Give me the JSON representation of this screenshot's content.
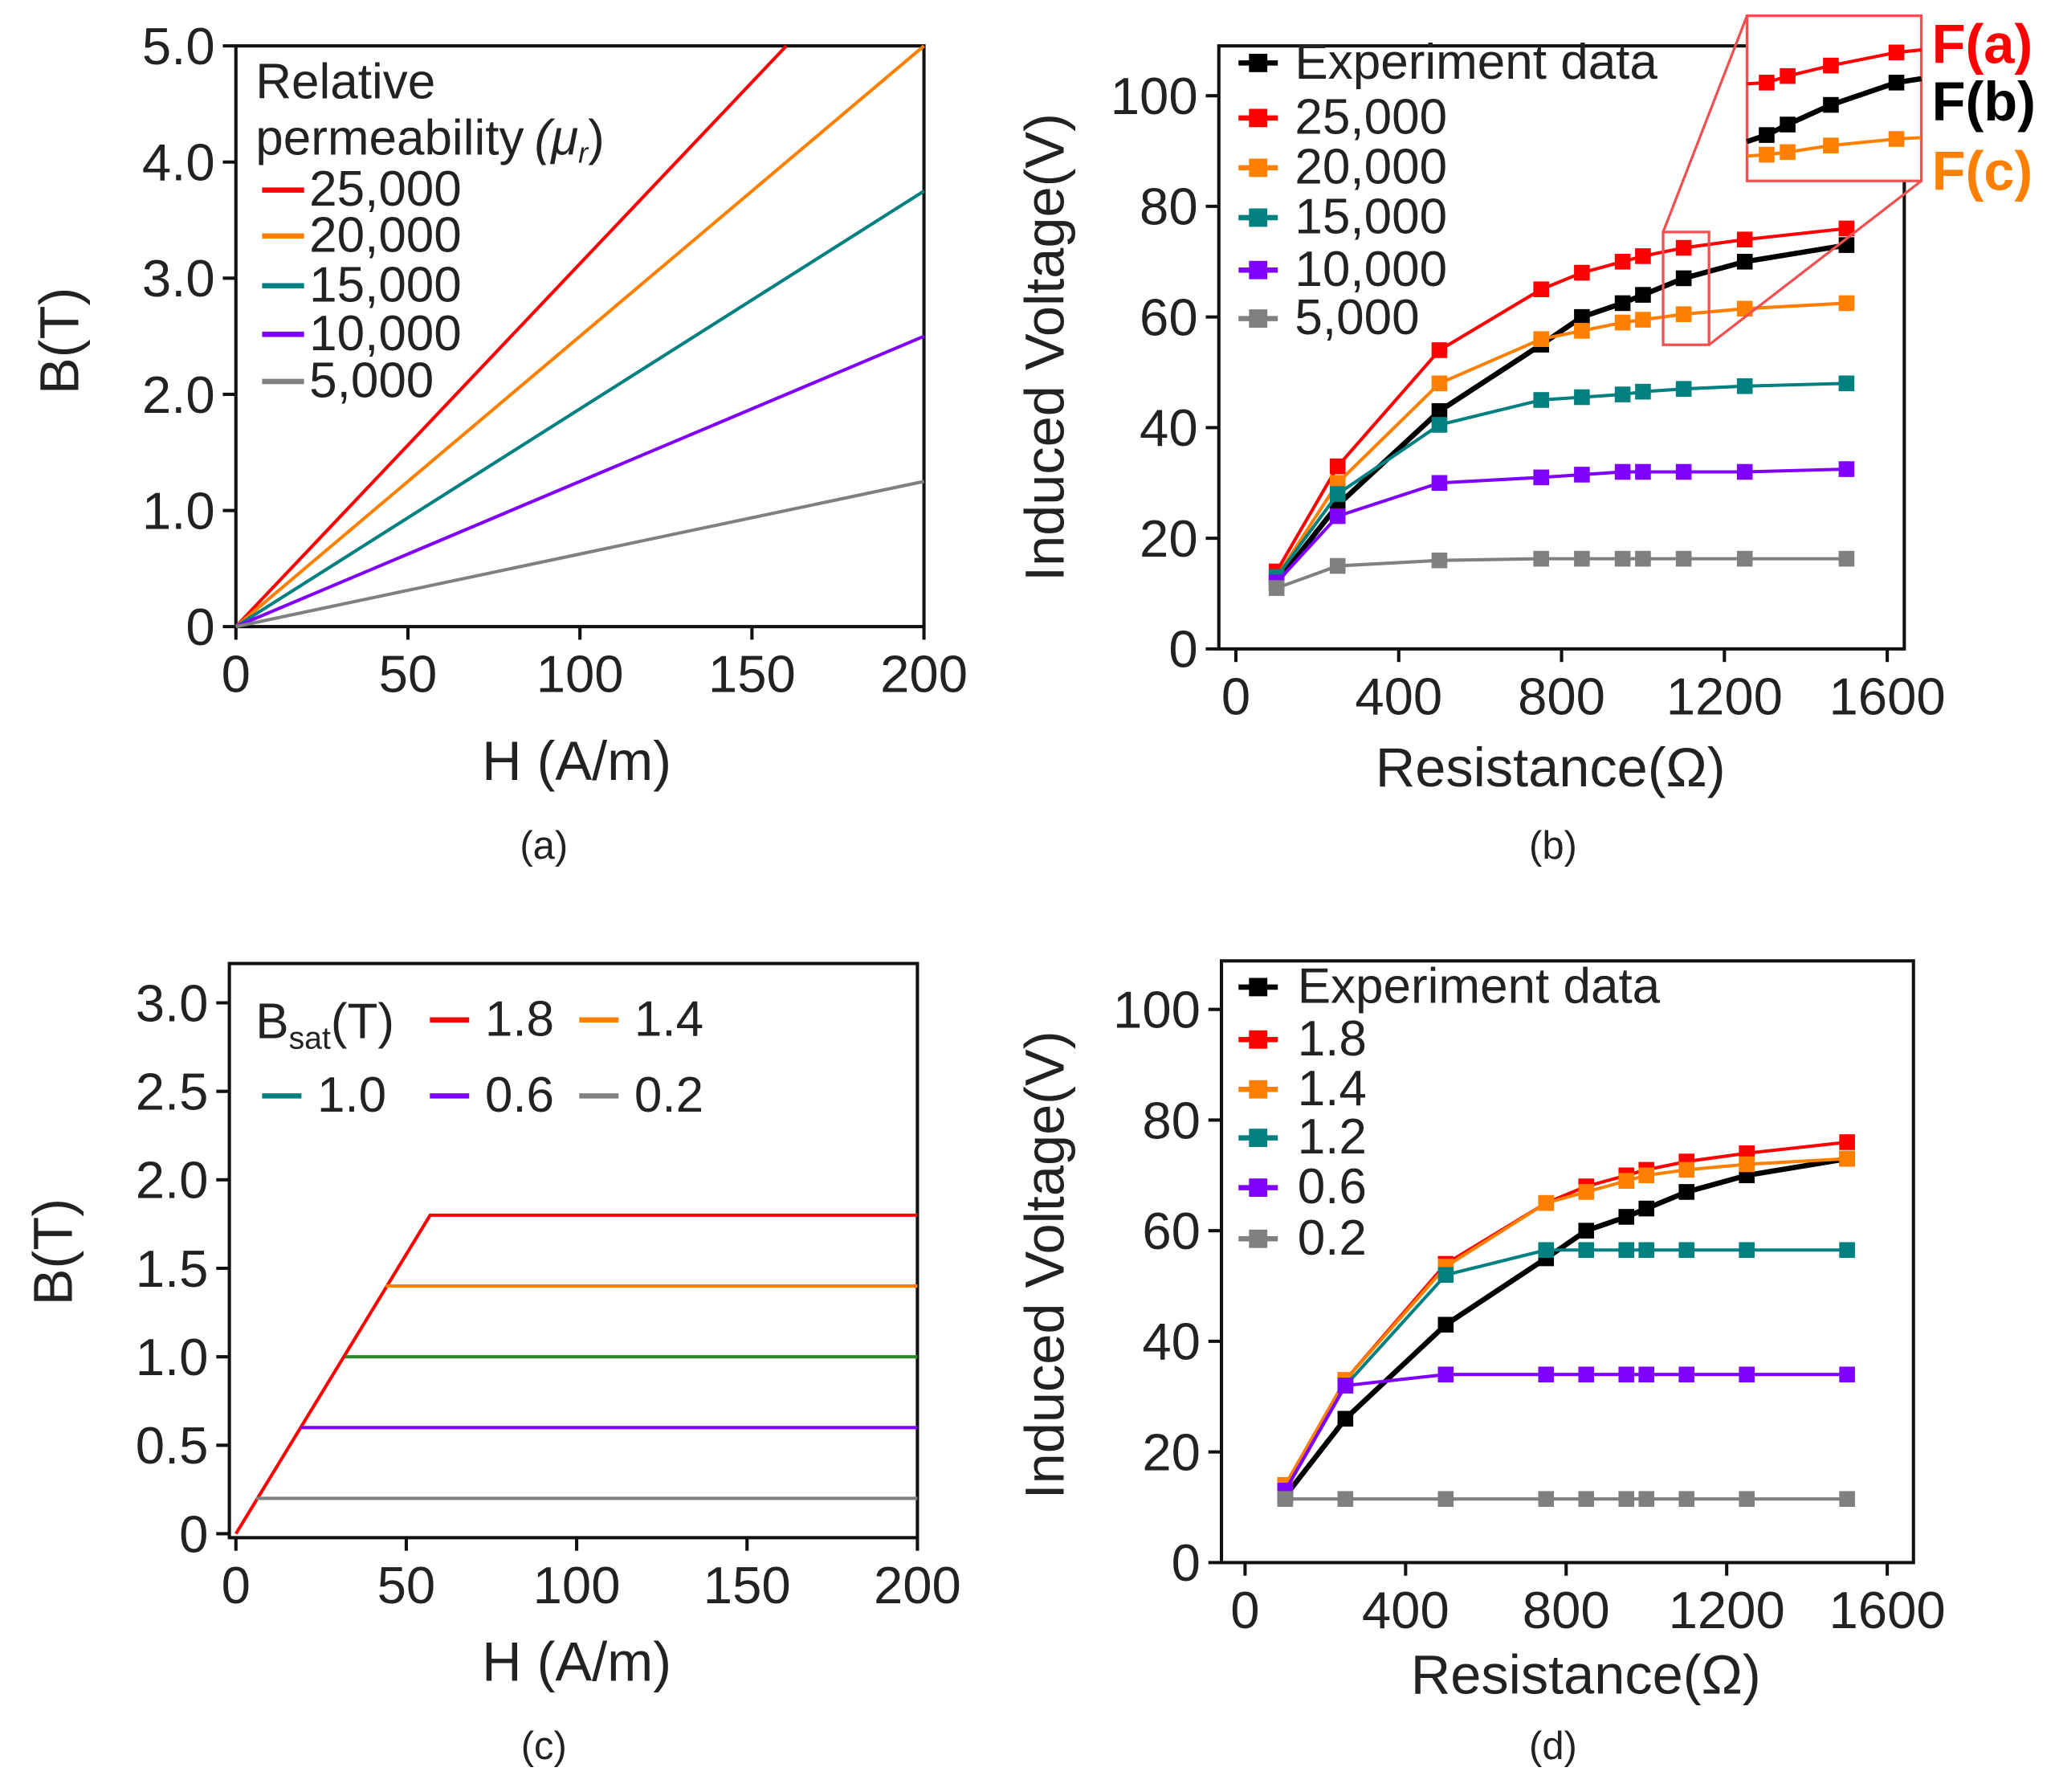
{
  "chart_data": [
    {
      "panel": "a",
      "type": "line",
      "caption": "(a)",
      "xlabel": "H (A/m)",
      "ylabel": "B(T)",
      "xlim": [
        0,
        200
      ],
      "ylim": [
        0,
        5
      ],
      "xticks": [
        0,
        50,
        100,
        150,
        200
      ],
      "xtick_labels": [
        "0",
        "50",
        "100",
        "150",
        "200"
      ],
      "yticks": [
        0,
        1,
        2,
        3,
        4,
        5
      ],
      "ytick_labels": [
        "0",
        "1.0",
        "2.0",
        "3.0",
        "4.0",
        "5.0"
      ],
      "legend_title": [
        "Relative",
        "permeability",
        "(μ",
        "r",
        ")"
      ],
      "legend_placement": "top-left",
      "series": [
        {
          "name": "25,000",
          "color": "#ff0000",
          "x": [
            0,
            160
          ],
          "y": [
            0,
            5
          ]
        },
        {
          "name": "20,000",
          "color": "#ff8000",
          "x": [
            0,
            200
          ],
          "y": [
            0,
            5
          ]
        },
        {
          "name": "15,000",
          "color": "#008080",
          "x": [
            0,
            200
          ],
          "y": [
            0,
            3.75
          ]
        },
        {
          "name": "10,000",
          "color": "#8000ff",
          "x": [
            0,
            200
          ],
          "y": [
            0,
            2.5
          ]
        },
        {
          "name": "5,000",
          "color": "#808080",
          "x": [
            0,
            200
          ],
          "y": [
            0,
            1.25
          ]
        }
      ]
    },
    {
      "panel": "b",
      "type": "line",
      "caption": "(b)",
      "xlabel": "Resistance(Ω)",
      "ylabel": "Induced Voltage(V)",
      "xlim": [
        0,
        1600
      ],
      "ylim": [
        0,
        100
      ],
      "xticks": [
        0,
        400,
        800,
        1200,
        1600
      ],
      "xtick_labels": [
        "0",
        "400",
        "800",
        "1200",
        "1600"
      ],
      "yticks": [
        0,
        20,
        40,
        60,
        80,
        100
      ],
      "ytick_labels": [
        "0",
        "20",
        "40",
        "60",
        "80",
        "100"
      ],
      "legend_placement": "top-left",
      "markers": true,
      "series": [
        {
          "name": "Experiment data",
          "color": "#000000",
          "x": [
            100,
            250,
            500,
            750,
            850,
            950,
            1000,
            1100,
            1250,
            1500
          ],
          "y": [
            12,
            26,
            43,
            55,
            60,
            62.5,
            64,
            67,
            70,
            73
          ]
        },
        {
          "name": "25,000",
          "color": "#ff0000",
          "x": [
            100,
            250,
            500,
            750,
            850,
            950,
            1000,
            1100,
            1250,
            1500
          ],
          "y": [
            14,
            33,
            54,
            65,
            68,
            70,
            71,
            72.5,
            74,
            76
          ]
        },
        {
          "name": "20,000",
          "color": "#ff8000",
          "x": [
            100,
            250,
            500,
            750,
            850,
            950,
            1000,
            1100,
            1250,
            1500
          ],
          "y": [
            13,
            30,
            48,
            56,
            57.5,
            59,
            59.5,
            60.5,
            61.5,
            62.5
          ]
        },
        {
          "name": "15,000",
          "color": "#008080",
          "x": [
            100,
            250,
            500,
            750,
            850,
            950,
            1000,
            1100,
            1250,
            1500
          ],
          "y": [
            13,
            28,
            40.5,
            45,
            45.5,
            46,
            46.5,
            47,
            47.5,
            48
          ]
        },
        {
          "name": "10,000",
          "color": "#8000ff",
          "x": [
            100,
            250,
            500,
            750,
            850,
            950,
            1000,
            1100,
            1250,
            1500
          ],
          "y": [
            12,
            24,
            30,
            31,
            31.5,
            32,
            32,
            32,
            32,
            32.5
          ]
        },
        {
          "name": "5,000",
          "color": "#808080",
          "x": [
            100,
            250,
            500,
            750,
            850,
            950,
            1000,
            1100,
            1250,
            1500
          ],
          "y": [
            11,
            15,
            16,
            16.3,
            16.3,
            16.3,
            16.3,
            16.3,
            16.3,
            16.3
          ]
        }
      ],
      "inset_labels": [
        {
          "text": "F(a)",
          "color": "#ff0000"
        },
        {
          "text": "F(b)",
          "color": "#000000"
        },
        {
          "text": "F(c)",
          "color": "#ff8000"
        }
      ]
    },
    {
      "panel": "c",
      "type": "line",
      "caption": "(c)",
      "xlabel": "H (A/m)",
      "ylabel": "B(T)",
      "xlim": [
        0,
        200
      ],
      "ylim": [
        0,
        3
      ],
      "xticks": [
        0,
        50,
        100,
        150,
        200
      ],
      "xtick_labels": [
        "0",
        "50",
        "100",
        "150",
        "200"
      ],
      "yticks": [
        0,
        0.5,
        1,
        1.5,
        2,
        2.5,
        3
      ],
      "ytick_labels": [
        "0",
        "0.5",
        "1.0",
        "1.5",
        "2.0",
        "2.5",
        "3.0"
      ],
      "legend_title": [
        "B",
        "sat",
        "(T)"
      ],
      "legend_placement": "top",
      "series": [
        {
          "name": "1.8",
          "color": "#ff0000",
          "x": [
            0,
            57,
            200
          ],
          "y": [
            0,
            1.8,
            1.8
          ]
        },
        {
          "name": "1.4",
          "color": "#ff8000",
          "x": [
            44,
            200
          ],
          "y": [
            1.4,
            1.4
          ]
        },
        {
          "name": "1.0",
          "color": "#008080",
          "line_color": "#2a8a2a",
          "x": [
            32,
            200
          ],
          "y": [
            1.0,
            1.0
          ]
        },
        {
          "name": "0.6",
          "color": "#8000ff",
          "x": [
            19,
            200
          ],
          "y": [
            0.6,
            0.6
          ]
        },
        {
          "name": "0.2",
          "color": "#808080",
          "x": [
            6,
            200
          ],
          "y": [
            0.2,
            0.2
          ]
        }
      ]
    },
    {
      "panel": "d",
      "type": "line",
      "caption": "(d)",
      "xlabel": "Resistance(Ω)",
      "ylabel": "Induced Voltage(V)",
      "xlim": [
        0,
        1600
      ],
      "ylim": [
        0,
        100
      ],
      "xticks": [
        0,
        400,
        800,
        1200,
        1600
      ],
      "xtick_labels": [
        "0",
        "400",
        "800",
        "1200",
        "1600"
      ],
      "yticks": [
        0,
        20,
        40,
        60,
        80,
        100
      ],
      "ytick_labels": [
        "0",
        "20",
        "40",
        "60",
        "80",
        "100"
      ],
      "legend_placement": "top-left",
      "markers": true,
      "series": [
        {
          "name": "Experiment data",
          "color": "#000000",
          "x": [
            100,
            250,
            500,
            750,
            850,
            950,
            1000,
            1100,
            1250,
            1500
          ],
          "y": [
            12,
            26,
            43,
            55,
            60,
            62.5,
            64,
            67,
            70,
            73
          ]
        },
        {
          "name": "1.8",
          "color": "#ff0000",
          "x": [
            100,
            250,
            500,
            750,
            850,
            950,
            1000,
            1100,
            1250,
            1500
          ],
          "y": [
            14,
            33,
            54,
            65,
            68,
            70,
            71,
            72.5,
            74,
            76
          ]
        },
        {
          "name": "1.4",
          "color": "#ff8000",
          "x": [
            100,
            250,
            500,
            750,
            850,
            950,
            1000,
            1100,
            1250,
            1500
          ],
          "y": [
            14,
            33,
            53.5,
            65,
            67,
            69,
            70,
            71,
            72,
            73
          ]
        },
        {
          "name": "1.2",
          "color": "#008080",
          "x": [
            100,
            250,
            500,
            750,
            850,
            950,
            1000,
            1100,
            1250,
            1500
          ],
          "y": [
            13,
            32,
            52,
            56.5,
            56.5,
            56.5,
            56.5,
            56.5,
            56.5,
            56.5
          ]
        },
        {
          "name": "0.6",
          "color": "#8000ff",
          "x": [
            100,
            250,
            500,
            750,
            850,
            950,
            1000,
            1100,
            1250,
            1500
          ],
          "y": [
            13,
            32,
            34,
            34,
            34,
            34,
            34,
            34,
            34,
            34
          ]
        },
        {
          "name": "0.2",
          "color": "#808080",
          "x": [
            100,
            250,
            500,
            750,
            850,
            950,
            1000,
            1100,
            1250,
            1500
          ],
          "y": [
            11.5,
            11.5,
            11.5,
            11.5,
            11.5,
            11.5,
            11.5,
            11.5,
            11.5,
            11.5
          ]
        }
      ]
    }
  ]
}
